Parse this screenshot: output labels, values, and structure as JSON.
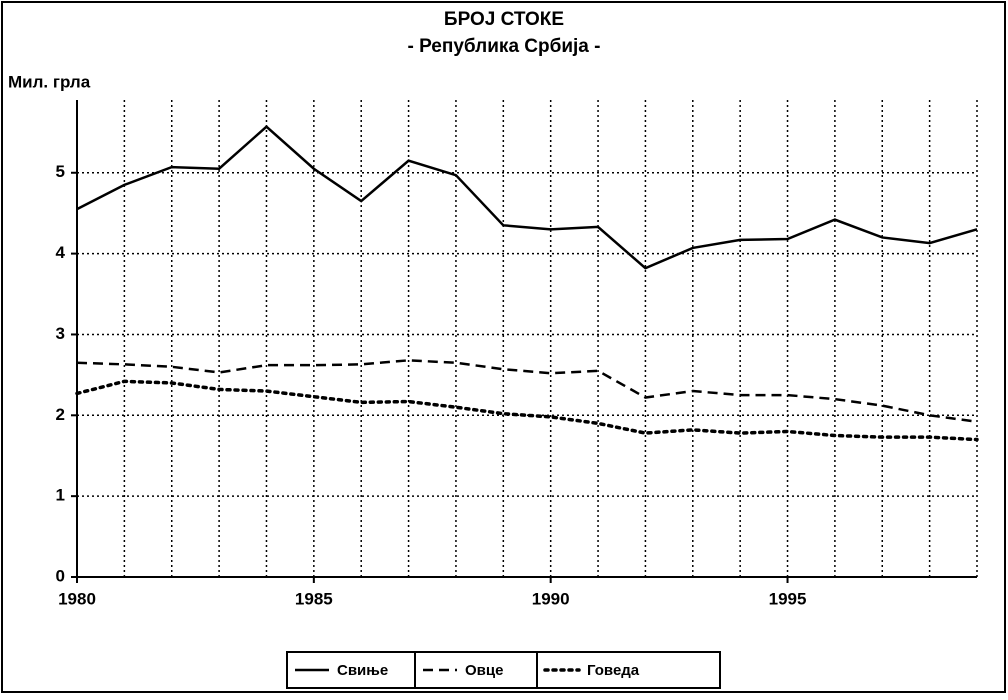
{
  "chart_data": {
    "type": "line",
    "title": "БРОЈ СТОКЕ",
    "subtitle": "- Република Србија -",
    "y_label": "Мил. грла",
    "x": [
      1980,
      1981,
      1982,
      1983,
      1984,
      1985,
      1986,
      1987,
      1988,
      1989,
      1990,
      1991,
      1992,
      1993,
      1994,
      1995,
      1996,
      1997,
      1998,
      1999
    ],
    "xlim": [
      1980,
      1999
    ],
    "xticks": [
      1980,
      1985,
      1990,
      1995
    ],
    "ylim": [
      0,
      5.9
    ],
    "yticks": [
      0,
      1,
      2,
      3,
      4,
      5
    ],
    "grid": true,
    "legend": "bottom",
    "series": [
      {
        "name": "Свиње",
        "color": "#000000",
        "dash": "solid",
        "values": [
          4.55,
          4.85,
          5.07,
          5.05,
          5.57,
          5.05,
          4.65,
          5.15,
          4.97,
          4.35,
          4.3,
          4.33,
          3.82,
          4.07,
          4.17,
          4.18,
          4.42,
          4.2,
          4.13,
          4.3
        ]
      },
      {
        "name": "Овце",
        "color": "#000000",
        "dash": "dashed",
        "values": [
          2.65,
          2.63,
          2.6,
          2.53,
          2.62,
          2.62,
          2.63,
          2.68,
          2.65,
          2.57,
          2.52,
          2.55,
          2.22,
          2.3,
          2.25,
          2.25,
          2.2,
          2.12,
          2.0,
          1.92
        ]
      },
      {
        "name": "Говеда",
        "color": "#000000",
        "dash": "dotted",
        "values": [
          2.27,
          2.42,
          2.4,
          2.32,
          2.3,
          2.23,
          2.16,
          2.17,
          2.1,
          2.02,
          1.98,
          1.9,
          1.78,
          1.82,
          1.78,
          1.8,
          1.75,
          1.73,
          1.73,
          1.7
        ]
      }
    ]
  }
}
